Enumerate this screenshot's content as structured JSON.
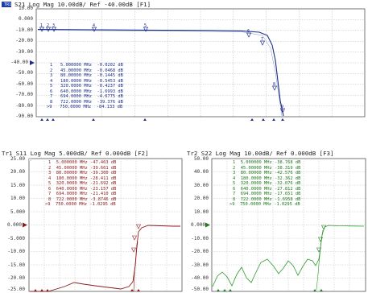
{
  "top": {
    "badge": "TR1",
    "title": "S21 Log Mag 10.00dB/ Ref -40.00dB [F1]",
    "yticks": [
      "10.00",
      "0.000",
      "-10.00",
      "-20.00",
      "-30.00",
      "-40.00",
      "-50.00",
      "-60.00",
      "-70.00",
      "-80.00",
      "-90.00"
    ],
    "ref_label": "-40.00",
    "markers": [
      {
        "num": "1",
        "freq": "5.000000 MHz",
        "value": "-0.0202 dB"
      },
      {
        "num": "2",
        "freq": "45.00000 MHz",
        "value": "-0.0468 dB"
      },
      {
        "num": "3",
        "freq": "80.00000 MHz",
        "value": "-0.1445 dB"
      },
      {
        "num": "4",
        "freq": "180.0000 MHz",
        "value": "-0.5453 dB"
      },
      {
        "num": "5",
        "freq": "320.0000 MHz",
        "value": "-0.4237 dB"
      },
      {
        "num": "6",
        "freq": "640.0000 MHz",
        "value": "-1.6993 dB"
      },
      {
        "num": "7",
        "freq": "694.0000 MHz",
        "value": "-4.6775 dB"
      },
      {
        "num": "8",
        "freq": "722.0000 MHz",
        "value": "-39.376 dB"
      },
      {
        "num": "9",
        "freq": "750.0000 MHz",
        "value": "-84.133 dB"
      }
    ],
    "accent": "#1a2d8a"
  },
  "bottom_left": {
    "title": "Tr1 S11 Log Mag 5.000dB/ Ref 0.000dB [F2]",
    "yticks": [
      "25.00",
      "20.00",
      "15.00",
      "10.00",
      "5.000",
      "0.000",
      "-5.000",
      "-10.00",
      "-15.00",
      "-20.00",
      "-25.00"
    ],
    "ref_label": "0.000",
    "markers": [
      {
        "num": "1",
        "freq": "5.000000 MHz",
        "value": "-47.463 dB"
      },
      {
        "num": "2",
        "freq": "45.00000 MHz",
        "value": "-39.661 dB"
      },
      {
        "num": "3",
        "freq": "80.00000 MHz",
        "value": "-39.300 dB"
      },
      {
        "num": "4",
        "freq": "180.0000 MHz",
        "value": "-28.411 dB"
      },
      {
        "num": "5",
        "freq": "320.0000 MHz",
        "value": "-21.692 dB"
      },
      {
        "num": "6",
        "freq": "640.0000 MHz",
        "value": "-23.157 dB"
      },
      {
        "num": "7",
        "freq": "694.0000 MHz",
        "value": "-21.410 dB"
      },
      {
        "num": "8",
        "freq": "722.0000 MHz",
        "value": "-3.8746 dB"
      },
      {
        "num": "9",
        "freq": "750.0000 MHz",
        "value": "-1.0295 dB"
      }
    ],
    "accent": "#8b1c1c"
  },
  "bottom_right": {
    "title": "Tr2 S22 Log Mag 10.00dB/ Ref 0.000dB [F3]",
    "yticks": [
      "50.00",
      "40.00",
      "30.00",
      "20.00",
      "10.00",
      "0.000",
      "-10.00",
      "-20.00",
      "-30.00",
      "-40.00",
      "-50.00"
    ],
    "ref_label": "0.000",
    "markers": [
      {
        "num": "1",
        "freq": "5.000000 MHz",
        "value": "-38.768 dB"
      },
      {
        "num": "2",
        "freq": "45.00000 MHz",
        "value": "-38.319 dB"
      },
      {
        "num": "3",
        "freq": "80.00000 MHz",
        "value": "-42.576 dB"
      },
      {
        "num": "4",
        "freq": "180.0000 MHz",
        "value": "-32.362 dB"
      },
      {
        "num": "5",
        "freq": "320.0000 MHz",
        "value": "-32.076 dB"
      },
      {
        "num": "6",
        "freq": "640.0000 MHz",
        "value": "-27.812 dB"
      },
      {
        "num": "7",
        "freq": "694.0000 MHz",
        "value": "-17.651 dB"
      },
      {
        "num": "8",
        "freq": "722.0000 MHz",
        "value": "-1.6958 dB"
      },
      {
        "num": "9",
        "freq": "750.0000 MHz",
        "value": "-1.0295 dB"
      }
    ],
    "accent": "#1e7a1e"
  }
}
